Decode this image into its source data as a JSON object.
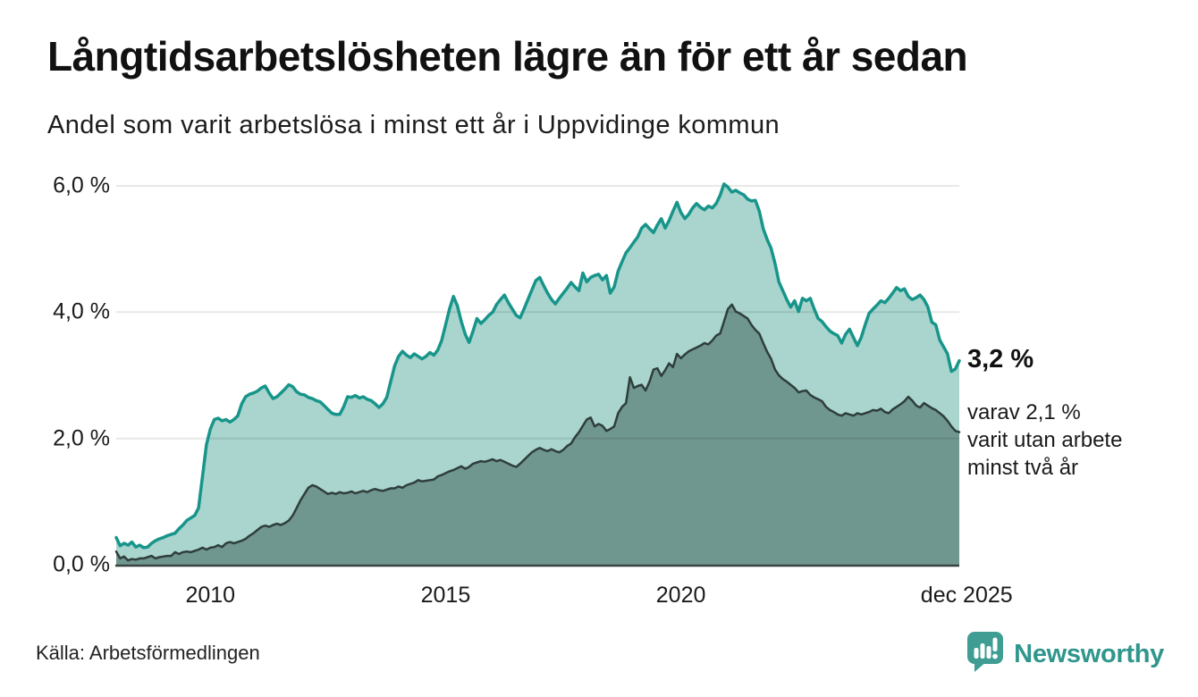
{
  "header": {
    "title": "Långtidsarbetslösheten lägre än för ett år sedan",
    "subtitle": "Andel som varit arbetslösa i minst ett år i Uppvidinge kommun"
  },
  "chart_data": {
    "type": "area",
    "title": "Långtidsarbetslösheten lägre än för ett år sedan",
    "subtitle": "Andel som varit arbetslösa i minst ett år i Uppvidinge kommun",
    "unit": "%",
    "x_start": "2008-01",
    "x_end": "2025-12",
    "x_interval": "monthly",
    "ylim": [
      0,
      6.3
    ],
    "grid": "horizontal",
    "legend_position": "annotated-right",
    "y_ticks": [
      {
        "label": "0,0 %",
        "value": 0
      },
      {
        "label": "2,0 %",
        "value": 2
      },
      {
        "label": "4,0 %",
        "value": 4
      },
      {
        "label": "6,0 %",
        "value": 6
      }
    ],
    "x_ticks": [
      {
        "label": "2010",
        "month_index": 24
      },
      {
        "label": "2015",
        "month_index": 84
      },
      {
        "label": "2020",
        "month_index": 144
      },
      {
        "label": "dec 2025",
        "month_index": 215
      }
    ],
    "series": [
      {
        "name": "Andel som varit arbetslösa i minst ett år",
        "color": "#18958a",
        "fill": "#a9d5ce",
        "latest_value": 3.2,
        "values": [
          0.43,
          0.3,
          0.34,
          0.31,
          0.36,
          0.28,
          0.31,
          0.27,
          0.28,
          0.34,
          0.38,
          0.41,
          0.43,
          0.46,
          0.48,
          0.5,
          0.57,
          0.63,
          0.7,
          0.74,
          0.78,
          0.9,
          1.4,
          1.9,
          2.15,
          2.3,
          2.32,
          2.28,
          2.3,
          2.26,
          2.3,
          2.36,
          2.55,
          2.66,
          2.7,
          2.72,
          2.75,
          2.8,
          2.83,
          2.72,
          2.63,
          2.66,
          2.72,
          2.78,
          2.85,
          2.82,
          2.74,
          2.7,
          2.69,
          2.65,
          2.63,
          2.6,
          2.58,
          2.52,
          2.46,
          2.4,
          2.38,
          2.38,
          2.5,
          2.66,
          2.65,
          2.68,
          2.64,
          2.66,
          2.62,
          2.6,
          2.55,
          2.49,
          2.55,
          2.65,
          2.9,
          3.15,
          3.3,
          3.38,
          3.32,
          3.28,
          3.34,
          3.3,
          3.26,
          3.3,
          3.36,
          3.32,
          3.4,
          3.55,
          3.8,
          4.05,
          4.25,
          4.1,
          3.85,
          3.65,
          3.52,
          3.7,
          3.9,
          3.82,
          3.88,
          3.95,
          4.0,
          4.12,
          4.2,
          4.27,
          4.15,
          4.05,
          3.95,
          3.91,
          4.05,
          4.2,
          4.35,
          4.5,
          4.55,
          4.42,
          4.3,
          4.2,
          4.13,
          4.22,
          4.3,
          4.38,
          4.47,
          4.4,
          4.34,
          4.62,
          4.48,
          4.55,
          4.58,
          4.6,
          4.51,
          4.58,
          4.3,
          4.4,
          4.65,
          4.8,
          4.94,
          5.02,
          5.11,
          5.19,
          5.33,
          5.39,
          5.32,
          5.26,
          5.38,
          5.48,
          5.33,
          5.45,
          5.6,
          5.74,
          5.58,
          5.48,
          5.55,
          5.65,
          5.72,
          5.66,
          5.62,
          5.68,
          5.65,
          5.72,
          5.85,
          6.03,
          5.98,
          5.9,
          5.93,
          5.89,
          5.86,
          5.79,
          5.76,
          5.77,
          5.6,
          5.32,
          5.15,
          5.01,
          4.77,
          4.48,
          4.34,
          4.2,
          4.08,
          4.18,
          4.01,
          4.22,
          4.18,
          4.22,
          4.05,
          3.9,
          3.85,
          3.77,
          3.7,
          3.66,
          3.63,
          3.51,
          3.65,
          3.73,
          3.6,
          3.47,
          3.6,
          3.8,
          3.98,
          4.05,
          4.11,
          4.18,
          4.15,
          4.22,
          4.3,
          4.39,
          4.34,
          4.37,
          4.25,
          4.2,
          4.23,
          4.27,
          4.2,
          4.08,
          3.84,
          3.8,
          3.56,
          3.45,
          3.34,
          3.06,
          3.1,
          3.23
        ]
      },
      {
        "name": "varav varit utan arbete minst två år",
        "color": "#2f3e3b",
        "fill": "#6f968f",
        "latest_value": 2.1,
        "values": [
          0.21,
          0.1,
          0.13,
          0.07,
          0.09,
          0.08,
          0.1,
          0.1,
          0.12,
          0.14,
          0.1,
          0.12,
          0.13,
          0.14,
          0.14,
          0.2,
          0.17,
          0.2,
          0.21,
          0.2,
          0.22,
          0.24,
          0.27,
          0.24,
          0.27,
          0.28,
          0.31,
          0.28,
          0.34,
          0.36,
          0.34,
          0.36,
          0.38,
          0.41,
          0.46,
          0.5,
          0.55,
          0.6,
          0.62,
          0.6,
          0.63,
          0.65,
          0.63,
          0.66,
          0.7,
          0.78,
          0.9,
          1.02,
          1.12,
          1.22,
          1.26,
          1.24,
          1.2,
          1.16,
          1.12,
          1.14,
          1.12,
          1.15,
          1.13,
          1.14,
          1.16,
          1.13,
          1.15,
          1.17,
          1.15,
          1.18,
          1.2,
          1.18,
          1.17,
          1.19,
          1.21,
          1.21,
          1.24,
          1.22,
          1.26,
          1.28,
          1.3,
          1.34,
          1.32,
          1.33,
          1.34,
          1.35,
          1.4,
          1.42,
          1.45,
          1.48,
          1.5,
          1.53,
          1.56,
          1.52,
          1.55,
          1.6,
          1.62,
          1.64,
          1.63,
          1.65,
          1.67,
          1.64,
          1.66,
          1.63,
          1.6,
          1.57,
          1.55,
          1.6,
          1.66,
          1.72,
          1.78,
          1.82,
          1.85,
          1.82,
          1.8,
          1.83,
          1.8,
          1.78,
          1.82,
          1.88,
          1.92,
          2.02,
          2.1,
          2.2,
          2.3,
          2.33,
          2.19,
          2.23,
          2.2,
          2.12,
          2.15,
          2.19,
          2.4,
          2.5,
          2.56,
          2.97,
          2.8,
          2.83,
          2.85,
          2.76,
          2.9,
          3.09,
          3.11,
          2.99,
          3.08,
          3.19,
          3.13,
          3.34,
          3.27,
          3.33,
          3.38,
          3.41,
          3.44,
          3.47,
          3.51,
          3.49,
          3.55,
          3.63,
          3.66,
          3.85,
          4.05,
          4.12,
          4.01,
          3.98,
          3.94,
          3.9,
          3.8,
          3.72,
          3.66,
          3.51,
          3.37,
          3.26,
          3.09,
          3.0,
          2.94,
          2.9,
          2.85,
          2.8,
          2.73,
          2.75,
          2.76,
          2.69,
          2.65,
          2.62,
          2.59,
          2.5,
          2.45,
          2.42,
          2.38,
          2.36,
          2.4,
          2.38,
          2.36,
          2.4,
          2.38,
          2.4,
          2.42,
          2.45,
          2.44,
          2.47,
          2.42,
          2.4,
          2.46,
          2.5,
          2.54,
          2.59,
          2.66,
          2.6,
          2.52,
          2.49,
          2.56,
          2.52,
          2.48,
          2.45,
          2.4,
          2.35,
          2.28,
          2.19,
          2.12,
          2.1
        ]
      }
    ]
  },
  "annotations": {
    "latest_value_label": "3,2 %",
    "secondary_lines": [
      "varav 2,1 %",
      "varit utan arbete",
      "minst två år"
    ]
  },
  "footer": {
    "source": "Källa: Arbetsförmedlingen",
    "brand": "Newsworthy",
    "brand_color": "#2e968c",
    "brand_icon_color": "#3f9d93",
    "brand_icon": "speech-bubble-bar-chart"
  }
}
